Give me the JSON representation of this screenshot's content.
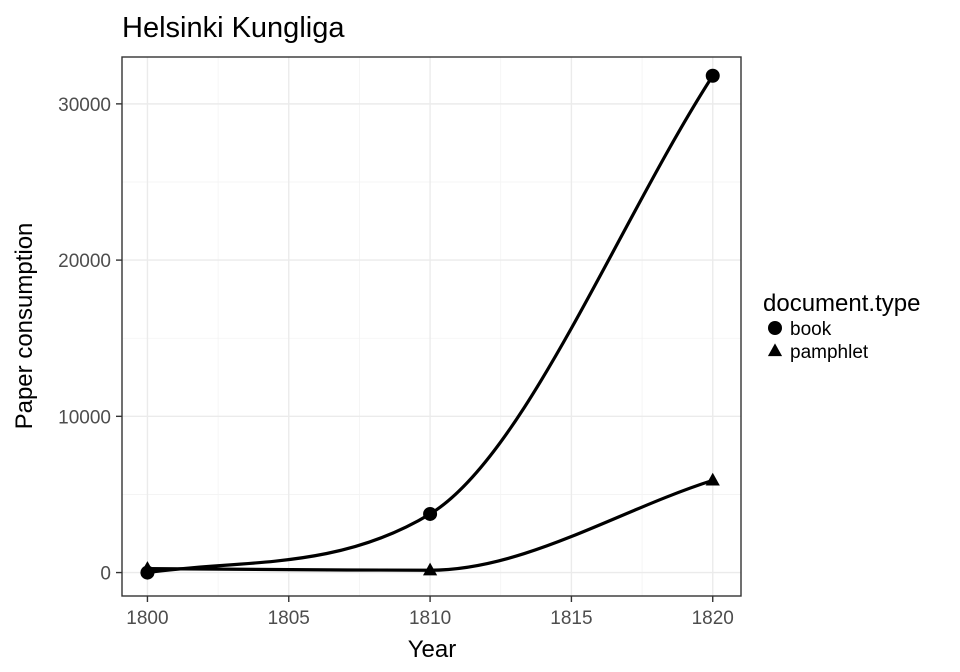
{
  "chart_data": {
    "type": "line",
    "title": "Helsinki Kungliga",
    "xlabel": "Year",
    "ylabel": "Paper consumption",
    "xlim": [
      1799.1,
      1821.0
    ],
    "ylim": [
      -1500,
      33000
    ],
    "x_ticks": [
      1800,
      1805,
      1810,
      1815,
      1820
    ],
    "x_tick_labels": [
      "1800",
      "1805",
      "1810",
      "1815",
      "1820"
    ],
    "y_ticks": [
      0,
      10000,
      20000,
      30000
    ],
    "y_tick_labels": [
      "0",
      "10000",
      "20000",
      "30000"
    ],
    "grid": true,
    "legend": {
      "title": "document.type",
      "placement": "right",
      "entries": [
        "book",
        "pamphlet"
      ]
    },
    "series": [
      {
        "name": "book",
        "marker": "circle",
        "color": "#000000",
        "x": [
          1800,
          1810,
          1820
        ],
        "y": [
          0,
          3750,
          31800
        ]
      },
      {
        "name": "pamphlet",
        "marker": "triangle",
        "color": "#000000",
        "x": [
          1800,
          1810,
          1820
        ],
        "y": [
          250,
          150,
          5900
        ]
      }
    ]
  }
}
